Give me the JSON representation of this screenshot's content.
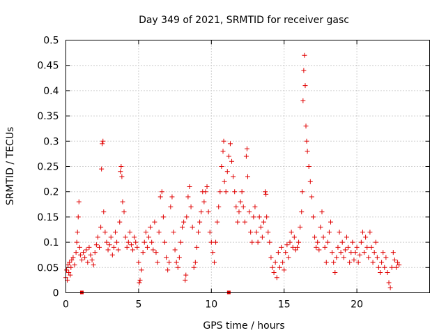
{
  "chart_data": {
    "type": "scatter",
    "title": "Day 349 of 2021, SRMTID for receiver gasc",
    "xlabel": "GPS time / hours",
    "ylabel": "SRMTID / TECUs",
    "xlim": [
      0,
      25
    ],
    "ylim": [
      0,
      0.5
    ],
    "xticks": [
      0,
      5,
      10,
      15,
      20
    ],
    "yticks": [
      0,
      0.05,
      0.1,
      0.15,
      0.2,
      0.25,
      0.3,
      0.35,
      0.4,
      0.45,
      0.5
    ],
    "ytick_labels": [
      "0",
      "0.05",
      "0.1",
      "0.15",
      "0.2",
      "0.25",
      "0.3",
      "0.35",
      "0.4",
      "0.45",
      "0.5"
    ],
    "grid": true,
    "marker": "+",
    "color": "#e00000",
    "gap_markers": [
      1.1,
      11.2
    ],
    "series": [
      {
        "name": "SRMTID",
        "points": [
          [
            0.0,
            0.03
          ],
          [
            0.05,
            0.045
          ],
          [
            0.1,
            0.025
          ],
          [
            0.15,
            0.055
          ],
          [
            0.2,
            0.04
          ],
          [
            0.25,
            0.06
          ],
          [
            0.3,
            0.035
          ],
          [
            0.35,
            0.05
          ],
          [
            0.4,
            0.065
          ],
          [
            0.5,
            0.07
          ],
          [
            0.6,
            0.055
          ],
          [
            0.7,
            0.08
          ],
          [
            0.75,
            0.1
          ],
          [
            0.8,
            0.12
          ],
          [
            0.85,
            0.15
          ],
          [
            0.9,
            0.18
          ],
          [
            0.95,
            0.09
          ],
          [
            1.0,
            0.075
          ],
          [
            1.1,
            0.065
          ],
          [
            1.2,
            0.08
          ],
          [
            1.3,
            0.07
          ],
          [
            1.4,
            0.085
          ],
          [
            1.5,
            0.06
          ],
          [
            1.6,
            0.09
          ],
          [
            1.7,
            0.075
          ],
          [
            1.8,
            0.065
          ],
          [
            1.9,
            0.055
          ],
          [
            2.0,
            0.08
          ],
          [
            2.1,
            0.095
          ],
          [
            2.2,
            0.11
          ],
          [
            2.3,
            0.09
          ],
          [
            2.4,
            0.13
          ],
          [
            2.45,
            0.245
          ],
          [
            2.5,
            0.295
          ],
          [
            2.55,
            0.3
          ],
          [
            2.6,
            0.16
          ],
          [
            2.7,
            0.12
          ],
          [
            2.8,
            0.1
          ],
          [
            2.9,
            0.085
          ],
          [
            3.0,
            0.095
          ],
          [
            3.1,
            0.11
          ],
          [
            3.2,
            0.075
          ],
          [
            3.3,
            0.09
          ],
          [
            3.4,
            0.12
          ],
          [
            3.5,
            0.1
          ],
          [
            3.6,
            0.085
          ],
          [
            3.7,
            0.14
          ],
          [
            3.75,
            0.24
          ],
          [
            3.8,
            0.25
          ],
          [
            3.85,
            0.23
          ],
          [
            3.9,
            0.18
          ],
          [
            4.0,
            0.16
          ],
          [
            4.1,
            0.11
          ],
          [
            4.2,
            0.09
          ],
          [
            4.3,
            0.1
          ],
          [
            4.4,
            0.12
          ],
          [
            4.5,
            0.095
          ],
          [
            4.6,
            0.085
          ],
          [
            4.7,
            0.11
          ],
          [
            4.8,
            0.1
          ],
          [
            4.9,
            0.09
          ],
          [
            5.0,
            0.06
          ],
          [
            5.05,
            0.02
          ],
          [
            5.1,
            0.025
          ],
          [
            5.2,
            0.045
          ],
          [
            5.3,
            0.08
          ],
          [
            5.4,
            0.1
          ],
          [
            5.5,
            0.12
          ],
          [
            5.6,
            0.09
          ],
          [
            5.7,
            0.11
          ],
          [
            5.8,
            0.13
          ],
          [
            5.9,
            0.1
          ],
          [
            6.0,
            0.085
          ],
          [
            6.1,
            0.14
          ],
          [
            6.2,
            0.08
          ],
          [
            6.3,
            0.06
          ],
          [
            6.4,
            0.12
          ],
          [
            6.5,
            0.19
          ],
          [
            6.6,
            0.2
          ],
          [
            6.7,
            0.15
          ],
          [
            6.8,
            0.1
          ],
          [
            6.9,
            0.07
          ],
          [
            7.0,
            0.045
          ],
          [
            7.1,
            0.06
          ],
          [
            7.2,
            0.17
          ],
          [
            7.3,
            0.19
          ],
          [
            7.4,
            0.12
          ],
          [
            7.5,
            0.085
          ],
          [
            7.6,
            0.06
          ],
          [
            7.7,
            0.05
          ],
          [
            7.8,
            0.07
          ],
          [
            7.9,
            0.1
          ],
          [
            8.0,
            0.13
          ],
          [
            8.1,
            0.14
          ],
          [
            8.2,
            0.025
          ],
          [
            8.25,
            0.035
          ],
          [
            8.3,
            0.15
          ],
          [
            8.4,
            0.19
          ],
          [
            8.5,
            0.21
          ],
          [
            8.6,
            0.17
          ],
          [
            8.7,
            0.13
          ],
          [
            8.8,
            0.05
          ],
          [
            8.9,
            0.06
          ],
          [
            9.0,
            0.09
          ],
          [
            9.1,
            0.12
          ],
          [
            9.2,
            0.14
          ],
          [
            9.3,
            0.16
          ],
          [
            9.4,
            0.2
          ],
          [
            9.5,
            0.18
          ],
          [
            9.6,
            0.2
          ],
          [
            9.7,
            0.21
          ],
          [
            9.8,
            0.16
          ],
          [
            9.9,
            0.12
          ],
          [
            10.0,
            0.1
          ],
          [
            10.1,
            0.08
          ],
          [
            10.2,
            0.06
          ],
          [
            10.3,
            0.1
          ],
          [
            10.4,
            0.14
          ],
          [
            10.5,
            0.17
          ],
          [
            10.6,
            0.2
          ],
          [
            10.7,
            0.25
          ],
          [
            10.8,
            0.28
          ],
          [
            10.85,
            0.3
          ],
          [
            10.9,
            0.22
          ],
          [
            11.0,
            0.2
          ],
          [
            11.1,
            0.24
          ],
          [
            11.2,
            0.27
          ],
          [
            11.3,
            0.295
          ],
          [
            11.4,
            0.26
          ],
          [
            11.5,
            0.23
          ],
          [
            11.6,
            0.2
          ],
          [
            11.7,
            0.17
          ],
          [
            11.8,
            0.14
          ],
          [
            11.9,
            0.16
          ],
          [
            12.0,
            0.18
          ],
          [
            12.1,
            0.2
          ],
          [
            12.2,
            0.17
          ],
          [
            12.3,
            0.14
          ],
          [
            12.4,
            0.27
          ],
          [
            12.45,
            0.285
          ],
          [
            12.5,
            0.23
          ],
          [
            12.6,
            0.16
          ],
          [
            12.7,
            0.12
          ],
          [
            12.8,
            0.1
          ],
          [
            12.9,
            0.15
          ],
          [
            13.0,
            0.17
          ],
          [
            13.1,
            0.12
          ],
          [
            13.2,
            0.1
          ],
          [
            13.3,
            0.15
          ],
          [
            13.4,
            0.13
          ],
          [
            13.5,
            0.11
          ],
          [
            13.6,
            0.14
          ],
          [
            13.7,
            0.2
          ],
          [
            13.75,
            0.195
          ],
          [
            13.8,
            0.15
          ],
          [
            13.9,
            0.12
          ],
          [
            14.0,
            0.1
          ],
          [
            14.1,
            0.07
          ],
          [
            14.2,
            0.05
          ],
          [
            14.3,
            0.04
          ],
          [
            14.4,
            0.06
          ],
          [
            14.5,
            0.03
          ],
          [
            14.6,
            0.08
          ],
          [
            14.7,
            0.05
          ],
          [
            14.8,
            0.09
          ],
          [
            14.9,
            0.06
          ],
          [
            15.0,
            0.045
          ],
          [
            15.1,
            0.08
          ],
          [
            15.2,
            0.095
          ],
          [
            15.3,
            0.07
          ],
          [
            15.4,
            0.1
          ],
          [
            15.5,
            0.12
          ],
          [
            15.6,
            0.09
          ],
          [
            15.7,
            0.11
          ],
          [
            15.8,
            0.085
          ],
          [
            15.9,
            0.09
          ],
          [
            16.0,
            0.1
          ],
          [
            16.1,
            0.13
          ],
          [
            16.2,
            0.16
          ],
          [
            16.25,
            0.2
          ],
          [
            16.3,
            0.38
          ],
          [
            16.35,
            0.44
          ],
          [
            16.4,
            0.47
          ],
          [
            16.45,
            0.41
          ],
          [
            16.5,
            0.33
          ],
          [
            16.55,
            0.3
          ],
          [
            16.6,
            0.28
          ],
          [
            16.7,
            0.25
          ],
          [
            16.8,
            0.22
          ],
          [
            16.9,
            0.19
          ],
          [
            17.0,
            0.15
          ],
          [
            17.1,
            0.11
          ],
          [
            17.2,
            0.09
          ],
          [
            17.3,
            0.1
          ],
          [
            17.4,
            0.085
          ],
          [
            17.5,
            0.13
          ],
          [
            17.6,
            0.16
          ],
          [
            17.7,
            0.11
          ],
          [
            17.8,
            0.09
          ],
          [
            17.9,
            0.06
          ],
          [
            18.0,
            0.1
          ],
          [
            18.1,
            0.12
          ],
          [
            18.2,
            0.14
          ],
          [
            18.3,
            0.08
          ],
          [
            18.4,
            0.06
          ],
          [
            18.5,
            0.04
          ],
          [
            18.6,
            0.07
          ],
          [
            18.7,
            0.09
          ],
          [
            18.8,
            0.12
          ],
          [
            18.9,
            0.08
          ],
          [
            19.0,
            0.1
          ],
          [
            19.1,
            0.07
          ],
          [
            19.2,
            0.085
          ],
          [
            19.3,
            0.11
          ],
          [
            19.4,
            0.09
          ],
          [
            19.5,
            0.06
          ],
          [
            19.6,
            0.08
          ],
          [
            19.7,
            0.1
          ],
          [
            19.8,
            0.065
          ],
          [
            19.9,
            0.08
          ],
          [
            20.0,
            0.09
          ],
          [
            20.1,
            0.06
          ],
          [
            20.2,
            0.075
          ],
          [
            20.3,
            0.1
          ],
          [
            20.4,
            0.12
          ],
          [
            20.5,
            0.08
          ],
          [
            20.6,
            0.11
          ],
          [
            20.7,
            0.09
          ],
          [
            20.8,
            0.07
          ],
          [
            20.9,
            0.12
          ],
          [
            21.0,
            0.09
          ],
          [
            21.1,
            0.06
          ],
          [
            21.2,
            0.08
          ],
          [
            21.3,
            0.1
          ],
          [
            21.4,
            0.07
          ],
          [
            21.5,
            0.05
          ],
          [
            21.6,
            0.04
          ],
          [
            21.7,
            0.06
          ],
          [
            21.8,
            0.08
          ],
          [
            21.9,
            0.05
          ],
          [
            22.0,
            0.07
          ],
          [
            22.1,
            0.04
          ],
          [
            22.2,
            0.02
          ],
          [
            22.3,
            0.01
          ],
          [
            22.4,
            0.05
          ],
          [
            22.5,
            0.08
          ],
          [
            22.6,
            0.065
          ],
          [
            22.7,
            0.05
          ],
          [
            22.8,
            0.06
          ],
          [
            22.9,
            0.055
          ]
        ]
      }
    ]
  }
}
